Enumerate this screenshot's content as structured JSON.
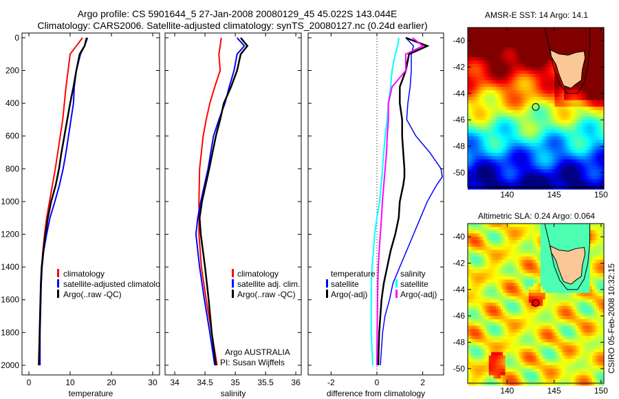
{
  "header": {
    "title_line1": "Argo profile: CS 5901644_5 27-Jan-2008 20080129_45 45.022S 143.044E",
    "title_line2": "Climatology: CARS2006. Satellite-adjusted climatology: synTS_20080127.nc (0.24d earlier)"
  },
  "footer_stamp": "CSIRO 05-Feb-2008 10:32:15",
  "colors": {
    "climatology": "#ff0000",
    "satellite": "#0000ff",
    "argo": "#000000",
    "sal_satellite": "#00ffff",
    "sal_argo": "#ff00ff",
    "land": "#fac896"
  },
  "chart_data": [
    {
      "type": "line",
      "id": "temperature",
      "xlabel": "temperature",
      "ylabel": "",
      "xlim": [
        -1.67,
        31.67
      ],
      "ylim": [
        2059,
        -29
      ],
      "xticks": [
        0,
        10,
        20,
        30
      ],
      "yticks": [
        0,
        200,
        400,
        600,
        800,
        1000,
        1200,
        1400,
        1600,
        1800,
        2000
      ],
      "depth": [
        0,
        50,
        100,
        200,
        300,
        400,
        500,
        600,
        700,
        800,
        900,
        1000,
        1100,
        1200,
        1300,
        1400,
        1500,
        1600,
        1700,
        1800,
        1900,
        2000
      ],
      "legend": [
        "climatology",
        "satellite-adjusted climatology",
        "Argo(..raw -QC)"
      ],
      "series": [
        {
          "name": "climatology",
          "color": "#ff0000",
          "values": [
            13,
            11.5,
            10,
            9.5,
            9,
            8.6,
            8.2,
            7.6,
            7,
            6.4,
            5.7,
            5,
            4.3,
            3.8,
            3.4,
            3.1,
            2.9,
            2.8,
            2.7,
            2.6,
            2.5,
            2.4
          ]
        },
        {
          "name": "satellite-adjusted climatology",
          "color": "#0000ff",
          "values": [
            14.2,
            13.5,
            12.5,
            11.5,
            11,
            10.8,
            10.2,
            9.6,
            9,
            8.3,
            7.4,
            6.3,
            5.1,
            4.3,
            3.6,
            3.2,
            3,
            2.9,
            2.8,
            2.7,
            2.7,
            2.7
          ]
        },
        {
          "name": "Argo(..raw -QC)",
          "color": "#000000",
          "values": [
            14,
            13.5,
            12.3,
            11.5,
            10.8,
            10,
            9.3,
            8.6,
            7.9,
            7.3,
            6.5,
            5.4,
            4.6,
            4,
            3.5,
            3.1,
            2.9,
            2.8,
            2.7,
            2.6,
            2.5,
            2.4
          ]
        }
      ]
    },
    {
      "type": "line",
      "id": "salinity",
      "xlabel": "salinity",
      "xlim": [
        33.84,
        36.09
      ],
      "ylim": [
        2059,
        -29
      ],
      "xticks": [
        34,
        34.5,
        35,
        35.5,
        36
      ],
      "xtick_labels": [
        "34",
        "34.5",
        "35",
        "35.5",
        "36"
      ],
      "yticks": [
        0,
        200,
        400,
        600,
        800,
        1000,
        1200,
        1400,
        1600,
        1800,
        2000
      ],
      "depth": [
        0,
        50,
        100,
        200,
        300,
        400,
        500,
        600,
        800,
        1000,
        1100,
        1200,
        1400,
        1600,
        1800,
        2000
      ],
      "legend": [
        "climatology",
        "satellite adj. clim.",
        "Argo(..raw -QC)"
      ],
      "annotation": [
        "Argo AUSTRALIA",
        "PI: Susan Wijffels"
      ],
      "series": [
        {
          "name": "climatology",
          "color": "#ff0000",
          "values": [
            34.77,
            34.75,
            34.73,
            34.75,
            34.66,
            34.58,
            34.52,
            34.47,
            34.41,
            34.4,
            34.4,
            34.4,
            34.44,
            34.52,
            34.61,
            34.7
          ]
        },
        {
          "name": "satellite adj. clim.",
          "color": "#0000ff",
          "values": [
            35.03,
            35.15,
            35.03,
            34.98,
            34.9,
            34.83,
            34.73,
            34.64,
            34.55,
            34.43,
            34.38,
            34.35,
            34.41,
            34.49,
            34.58,
            34.66
          ]
        },
        {
          "name": "Argo(..raw -QC)",
          "color": "#000000",
          "values": [
            35.09,
            35.2,
            35.09,
            35.03,
            34.93,
            34.81,
            34.75,
            34.68,
            34.57,
            34.45,
            34.41,
            34.43,
            34.5,
            34.56,
            34.61,
            34.68
          ]
        }
      ]
    },
    {
      "type": "line",
      "id": "difference",
      "xlabel": "difference from climatology",
      "xlim": [
        -3.0,
        2.91
      ],
      "ylim": [
        2059,
        -29
      ],
      "xticks": [
        -2,
        0,
        2
      ],
      "yticks": [
        0,
        200,
        400,
        600,
        800,
        1000,
        1200,
        1400,
        1600,
        1800,
        2000
      ],
      "zero_line": "dotted",
      "legend_groups": [
        {
          "heading": "temperature",
          "items": [
            "satellite",
            "Argo(-adj)"
          ]
        },
        {
          "heading": "salinity",
          "items": [
            "satellite",
            "Argo(-adj)"
          ]
        }
      ],
      "depth": [
        0,
        50,
        100,
        200,
        300,
        400,
        500,
        600,
        700,
        800,
        850,
        900,
        1000,
        1100,
        1200,
        1300,
        1400,
        1500,
        1600,
        1700,
        1800,
        2000
      ],
      "series": [
        {
          "name": "temperature satellite",
          "color": "#0000ff",
          "width": 1.5,
          "values": [
            1.26,
            1.6,
            1.5,
            1.5,
            1.45,
            1.35,
            1.3,
            1.7,
            2.3,
            2.8,
            2.85,
            2.6,
            2.2,
            1.9,
            1.6,
            1.3,
            1.0,
            0.7,
            0.55,
            0.35,
            0.25,
            0.15
          ]
        },
        {
          "name": "temperature Argo(-adj)",
          "color": "#000000",
          "width": 2.5,
          "values": [
            1.26,
            2.2,
            1.4,
            1.26,
            1.0,
            1.0,
            1.1,
            1.1,
            1.15,
            1.2,
            1.2,
            1.15,
            1.0,
            0.95,
            0.8,
            0.6,
            0.45,
            0.3,
            0.2,
            0.15,
            0.1,
            0.06
          ]
        },
        {
          "name": "salinity satellite",
          "color": "#00ffff",
          "width": 2,
          "values": [
            0.96,
            0.9,
            0.8,
            0.66,
            0.6,
            0.5,
            0.45,
            0.36,
            0.3,
            0.24,
            0.22,
            0.18,
            0.12,
            0.0,
            -0.1,
            -0.15,
            -0.21,
            -0.24,
            -0.25,
            -0.25,
            -0.25,
            -0.18
          ]
        },
        {
          "name": "salinity Argo(-adj)",
          "color": "#ff00ff",
          "width": 2,
          "values": [
            1.55,
            2.0,
            1.26,
            1.26,
            0.66,
            0.5,
            0.5,
            0.45,
            0.42,
            0.36,
            0.33,
            0.3,
            0.24,
            0.2,
            0.15,
            0.1,
            0.06,
            0.04,
            0.03,
            0.02,
            0.01,
            0.0
          ]
        }
      ]
    },
    {
      "type": "heatmap",
      "id": "sst-map",
      "title": "AMSR-E SST: 14 Argo: 14.1",
      "xlim": [
        135.8,
        150.3
      ],
      "ylim": [
        -51.1,
        -39
      ],
      "xticks": [
        140,
        145,
        150
      ],
      "yticks": [
        -40,
        -42,
        -44,
        -46,
        -48,
        -50
      ],
      "marker": {
        "lon": 143.044,
        "lat": -45.022
      }
    },
    {
      "type": "heatmap",
      "id": "sla-map",
      "title": "Altimetric SLA: 0.24 Argo: 0.064",
      "xlim": [
        135.8,
        150.3
      ],
      "ylim": [
        -51.1,
        -39
      ],
      "xticks": [
        140,
        145,
        150
      ],
      "yticks": [
        -40,
        -42,
        -44,
        -46,
        -48,
        -50
      ],
      "marker": {
        "lon": 143.044,
        "lat": -45.022
      }
    }
  ]
}
